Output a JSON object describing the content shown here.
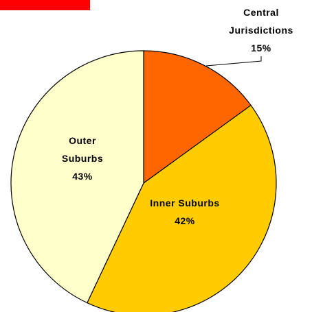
{
  "chart_data": {
    "type": "pie",
    "categories": [
      "Central Jurisdictions",
      "Inner Suburbs",
      "Outer Suburbs"
    ],
    "values": [
      15,
      42,
      43
    ],
    "value_labels": [
      "15%",
      "42%",
      "43%"
    ],
    "colors": [
      "#ff6600",
      "#ffcc00",
      "#ffffcc"
    ]
  }
}
